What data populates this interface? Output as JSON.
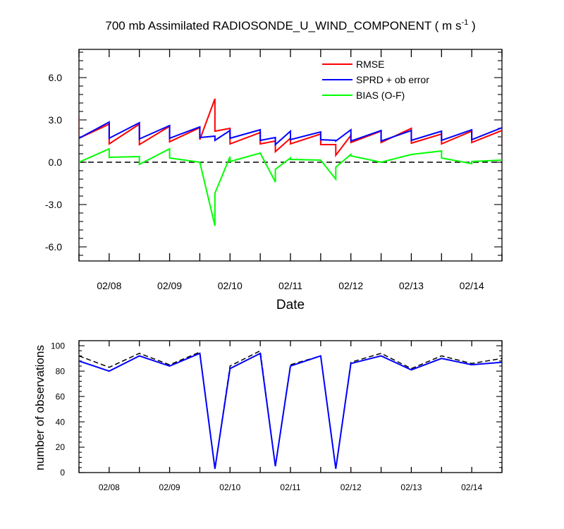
{
  "chart_data": [
    {
      "type": "line",
      "title": "700 mb Assimilated RADIOSONDE_U_WIND_COMPONENT ( m s",
      "title_sup": "-1",
      "title_end": " )",
      "xlabel": "Date",
      "ylabel": "",
      "ylim": [
        -7.0,
        8.0
      ],
      "xlim": [
        7.5,
        14.5
      ],
      "yticks": [
        -6.0,
        -3.0,
        0.0,
        3.0,
        6.0
      ],
      "ytick_labels": [
        "-6.0",
        "-3.0",
        "0.0",
        "3.0",
        "6.0"
      ],
      "xticks": [
        8,
        9,
        10,
        11,
        12,
        13,
        14
      ],
      "xtick_labels": [
        "02/08",
        "02/09",
        "02/10",
        "02/11",
        "02/12",
        "02/13",
        "02/14"
      ],
      "legend_position": "top-right",
      "zero_line": "dashed",
      "series": [
        {
          "name": "RMSE",
          "color": "#ff0000",
          "x": [
            7.5,
            7.5,
            8.0,
            8.0,
            8.5,
            8.5,
            9.0,
            9.0,
            9.5,
            9.5,
            9.75,
            9.75,
            10.0,
            10.0,
            10.5,
            10.5,
            10.75,
            10.75,
            11.0,
            11.0,
            11.5,
            11.5,
            11.75,
            11.75,
            12.0,
            12.0,
            12.5,
            12.5,
            13.0,
            13.0,
            13.5,
            13.5,
            14.0,
            14.0,
            14.5,
            14.5
          ],
          "y": [
            3.3,
            1.7,
            2.7,
            1.3,
            2.7,
            1.25,
            2.55,
            1.45,
            2.45,
            1.6,
            4.5,
            2.2,
            2.4,
            1.3,
            2.1,
            1.3,
            1.5,
            0.75,
            1.7,
            1.3,
            2.0,
            1.25,
            1.25,
            0.5,
            1.9,
            1.4,
            2.2,
            1.4,
            2.4,
            1.35,
            2.0,
            1.3,
            2.2,
            1.4,
            2.25,
            1.3
          ]
        },
        {
          "name": "SPRD + ob error",
          "color": "#0000ff",
          "x": [
            7.5,
            8.0,
            8.0,
            8.5,
            8.5,
            9.0,
            9.0,
            9.5,
            9.5,
            9.75,
            9.75,
            10.0,
            10.0,
            10.5,
            10.5,
            10.75,
            10.75,
            11.0,
            11.0,
            11.5,
            11.5,
            11.75,
            11.75,
            12.0,
            12.0,
            12.5,
            12.5,
            13.0,
            13.0,
            13.5,
            13.5,
            14.0,
            14.0,
            14.5
          ],
          "y": [
            1.7,
            2.85,
            1.7,
            2.8,
            1.65,
            2.6,
            1.7,
            2.5,
            1.75,
            1.85,
            1.55,
            2.25,
            1.7,
            2.3,
            1.55,
            1.75,
            1.25,
            2.2,
            1.6,
            2.15,
            1.6,
            1.55,
            1.5,
            2.3,
            1.5,
            2.25,
            1.5,
            2.25,
            1.55,
            2.2,
            1.55,
            2.3,
            1.6,
            2.45
          ]
        },
        {
          "name": "BIAS (O-F)",
          "color": "#00ff00",
          "x": [
            7.5,
            8.0,
            8.0,
            8.5,
            8.5,
            9.0,
            9.0,
            9.5,
            9.75,
            9.75,
            10.0,
            10.0,
            10.5,
            10.75,
            10.75,
            11.0,
            11.0,
            11.5,
            11.75,
            11.75,
            12.0,
            12.0,
            12.5,
            13.0,
            13.5,
            13.5,
            14.0,
            14.0,
            14.5
          ],
          "y": [
            0.0,
            0.95,
            0.35,
            0.4,
            -0.15,
            0.95,
            0.3,
            0.0,
            -4.5,
            -2.2,
            0.4,
            0.05,
            0.65,
            -1.4,
            -0.5,
            0.3,
            0.2,
            0.15,
            -1.2,
            -0.35,
            0.55,
            0.45,
            0.0,
            0.55,
            0.8,
            0.3,
            -0.1,
            0.05,
            0.15
          ]
        }
      ]
    },
    {
      "type": "line",
      "title": "",
      "xlabel": "",
      "ylabel": "number of observations",
      "ylim": [
        0,
        104
      ],
      "xlim": [
        7.5,
        14.5
      ],
      "yticks": [
        0,
        20,
        40,
        60,
        80,
        100
      ],
      "ytick_labels": [
        "0",
        "20",
        "40",
        "60",
        "80",
        "100"
      ],
      "xticks": [
        8,
        9,
        10,
        11,
        12,
        13,
        14
      ],
      "xtick_labels": [
        "02/08",
        "02/09",
        "02/10",
        "02/11",
        "02/12",
        "02/13",
        "02/14"
      ],
      "series": [
        {
          "name": "",
          "style": "dashed",
          "color": "#000000",
          "x": [
            7.5,
            8.0,
            8.5,
            9.0,
            9.5,
            9.75,
            10.0,
            10.5,
            10.75,
            11.0,
            11.5,
            11.75,
            12.0,
            12.5,
            13.0,
            13.5,
            14.0,
            14.5
          ],
          "y": [
            92,
            83,
            94,
            85,
            95,
            3,
            84,
            96,
            5,
            85,
            92,
            3,
            87,
            94,
            82,
            92,
            86,
            90
          ]
        },
        {
          "name": "",
          "style": "solid",
          "color": "#0000ff",
          "x": [
            7.5,
            8.0,
            8.5,
            9.0,
            9.5,
            9.75,
            10.0,
            10.5,
            10.75,
            11.0,
            11.5,
            11.75,
            12.0,
            12.5,
            13.0,
            13.5,
            14.0,
            14.5
          ],
          "y": [
            88,
            80,
            92,
            84,
            94,
            3,
            82,
            94,
            5,
            84,
            92,
            3,
            86,
            92,
            81,
            90,
            85,
            87
          ]
        }
      ]
    }
  ]
}
